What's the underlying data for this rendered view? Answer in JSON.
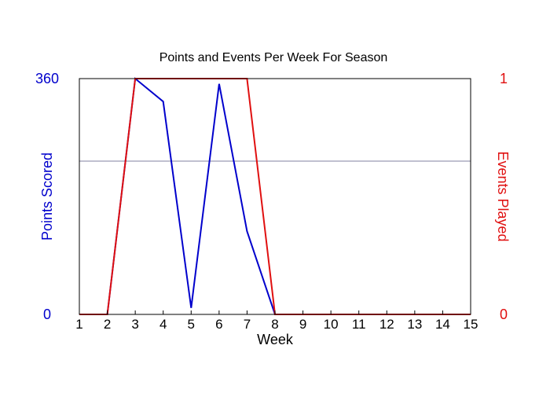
{
  "chart_data": {
    "type": "line",
    "title": "Points and Events Per Week For Season",
    "xlabel": "Week",
    "x": [
      1,
      2,
      3,
      4,
      5,
      6,
      7,
      8,
      9,
      10,
      11,
      12,
      13,
      14,
      15
    ],
    "x_tick_labels": [
      "1",
      "2",
      "3",
      "4",
      "5",
      "6",
      "7",
      "8",
      "9",
      "10",
      "11",
      "12",
      "13",
      "14",
      "15"
    ],
    "xlim": [
      1,
      15
    ],
    "y_left": {
      "label": "Points Scored",
      "lim": [
        0,
        360
      ],
      "tick_labels": [
        "0",
        "360"
      ],
      "color": "#0000cc"
    },
    "y_right": {
      "label": "Events Played",
      "lim": [
        0,
        1
      ],
      "tick_labels": [
        "0",
        "1"
      ],
      "color": "#e01010"
    },
    "series": [
      {
        "name": "Points Scored",
        "axis": "left",
        "color": "#0000cc",
        "values": [
          0,
          0,
          360,
          325,
          10,
          352,
          127,
          0,
          0,
          0,
          0,
          0,
          0,
          0,
          0
        ]
      },
      {
        "name": "Events Played",
        "axis": "right",
        "color": "#e01010",
        "values": [
          0,
          0,
          1,
          1,
          1,
          1,
          1,
          0,
          0,
          0,
          0,
          0,
          0,
          0,
          0
        ]
      }
    ],
    "reference_line": {
      "value": 0.65,
      "axis": "right",
      "color": "#8080a0"
    },
    "grid": false,
    "legend": "none"
  }
}
